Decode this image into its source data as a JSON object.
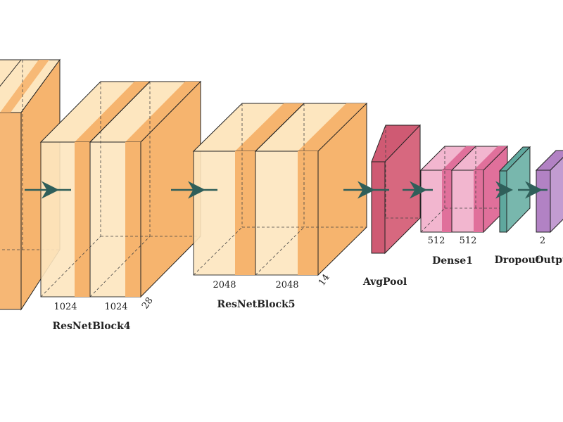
{
  "diagram": {
    "colors": {
      "resnet_light": "#fde6bf",
      "resnet_dark": "#f6b46e",
      "avgpool": "#cf5a73",
      "dense_light": "#f2b6cf",
      "dense_dark": "#e0709b",
      "dropout": "#5fa89e",
      "output": "#b282c4",
      "arrow": "#2f5f5a"
    },
    "blocks": {
      "block4": {
        "title": "ResNetBlock4",
        "dim1": "1024",
        "dim2": "1024",
        "depth": "28"
      },
      "block5": {
        "title": "ResNetBlock5",
        "dim1": "2048",
        "dim2": "2048",
        "depth": "14"
      },
      "avgpool": {
        "title": "AvgPool"
      },
      "dense1": {
        "title": "Dense1",
        "dim1": "512",
        "dim2": "512"
      },
      "dropout": {
        "title": "Dropout"
      },
      "output": {
        "title": "Output",
        "dim1": "2"
      }
    }
  }
}
